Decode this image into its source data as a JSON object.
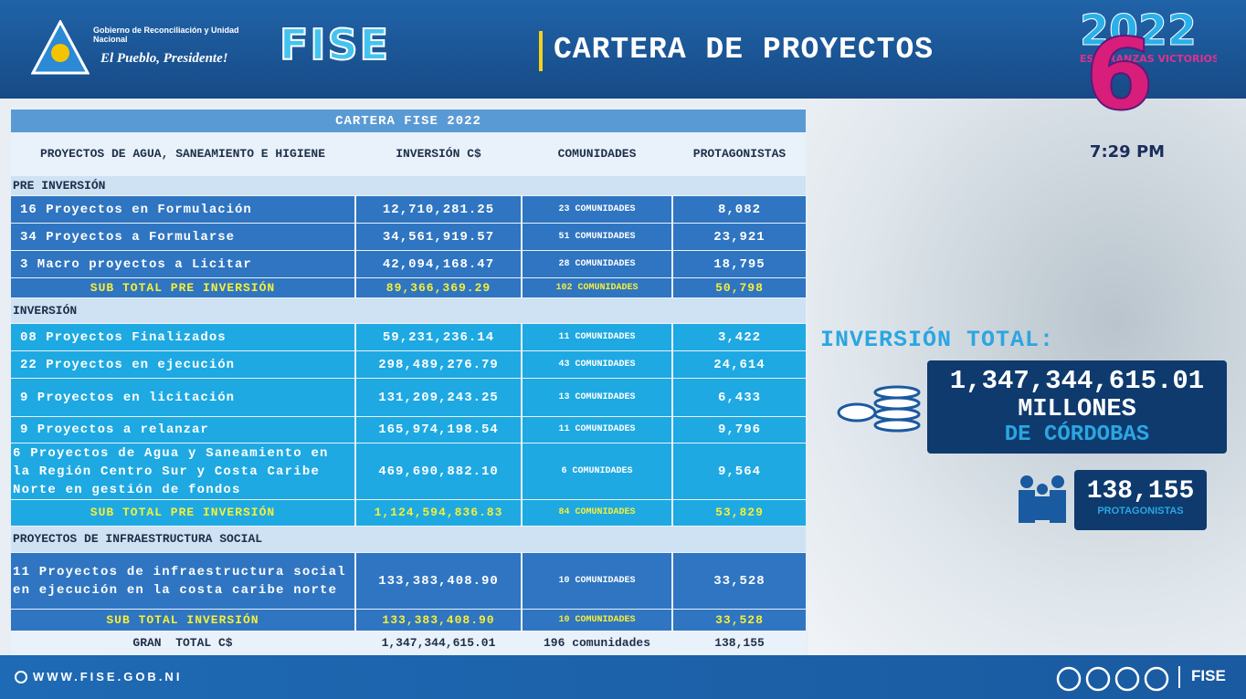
{
  "header": {
    "gov_name": "Gobierno de Reconciliación y Unidad Nacional",
    "slogan": "El Pueblo, Presidente!",
    "org": "FISE",
    "title": "CARTERA DE PROYECTOS"
  },
  "channel": {
    "year": "2022",
    "tagline": "ESPERANZAS VICTORIOSAS!",
    "number": "6",
    "time": "7:29 PM"
  },
  "table": {
    "title": "CARTERA FISE 2022",
    "headers": [
      "PROYECTOS DE AGUA, SANEAMIENTO E HIGIENE",
      "INVERSIÓN C$",
      "COMUNIDADES",
      "PROTAGONISTAS"
    ],
    "sections": [
      {
        "label": "PRE INVERSIÓN",
        "rows": [
          [
            "16 Proyectos en Formulación",
            "12,710,281.25",
            "23 COMUNIDADES",
            "8,082"
          ],
          [
            "34 Proyectos a Formularse",
            "34,561,919.57",
            "51 COMUNIDADES",
            "23,921"
          ],
          [
            "3 Macro proyectos a Licitar",
            "42,094,168.47",
            "28 COMUNIDADES",
            "18,795"
          ]
        ],
        "subtotal": [
          "SUB TOTAL PRE INVERSIÓN",
          "89,366,369.29",
          "102 COMUNIDADES",
          "50,798"
        ]
      },
      {
        "label": "INVERSIÓN",
        "rows": [
          [
            "08 Proyectos Finalizados",
            "59,231,236.14",
            "11 COMUNIDADES",
            "3,422"
          ],
          [
            "22 Proyectos en ejecución",
            "298,489,276.79",
            "43 COMUNIDADES",
            "24,614"
          ],
          [
            "9 Proyectos en licitación",
            "131,209,243.25",
            "13 COMUNIDADES",
            "6,433"
          ],
          [
            "9 Proyectos a relanzar",
            "165,974,198.54",
            "11 COMUNIDADES",
            "9,796"
          ],
          [
            "6 Proyectos de Agua y Saneamiento en la Región Centro Sur y Costa Caribe Norte en gestión de fondos",
            "469,690,882.10",
            "6 COMUNIDADES",
            "9,564"
          ]
        ],
        "subtotal": [
          "SUB TOTAL PRE INVERSIÓN",
          "1,124,594,836.83",
          "84 COMUNIDADES",
          "53,829"
        ]
      },
      {
        "label": "PROYECTOS DE INFRAESTRUCTURA SOCIAL",
        "rows": [
          [
            "11 Proyectos de infraestructura social en ejecución en la costa caribe norte",
            "133,383,408.90",
            "10 COMUNIDADES",
            "33,528"
          ]
        ],
        "subtotal": [
          "SUB TOTAL INVERSIÓN",
          "133,383,408.90",
          "10 COMUNIDADES",
          "33,528"
        ]
      }
    ],
    "total": [
      "GRAN  TOTAL C$",
      "1,347,344,615.01",
      "196 comunidades",
      "138,155"
    ]
  },
  "summary": {
    "label": "INVERSIÓN TOTAL:",
    "amount": "1,347,344,615.01",
    "unit_1": "MILLONES",
    "unit_2": "DE CÓRDOBAS",
    "people": "138,155",
    "people_label": "PROTAGONISTAS"
  },
  "footer": {
    "url": "WWW.FISE.GOB.NI",
    "org": "FISE"
  }
}
